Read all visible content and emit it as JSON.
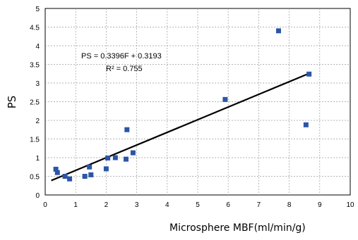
{
  "chart_data": {
    "type": "scatter",
    "xlabel": "Microsphere MBF(ml/min/g)",
    "ylabel": "PS",
    "xlim": [
      0,
      10
    ],
    "ylim": [
      0,
      5
    ],
    "xticks": [
      "0",
      "1",
      "2",
      "3",
      "4",
      "5",
      "6",
      "7",
      "8",
      "9",
      "10"
    ],
    "yticks": [
      "0",
      "0.5",
      "1",
      "1.5",
      "2",
      "2.5",
      "3",
      "3.5",
      "4",
      "4.5",
      "5"
    ],
    "grid": "dashed",
    "legend": "none",
    "series": [
      {
        "marker": "square",
        "color": "#2b55a8",
        "points": [
          [
            0.35,
            0.69
          ],
          [
            0.4,
            0.6
          ],
          [
            0.65,
            0.5
          ],
          [
            0.8,
            0.43
          ],
          [
            1.3,
            0.5
          ],
          [
            1.45,
            0.75
          ],
          [
            1.5,
            0.54
          ],
          [
            2.0,
            0.7
          ],
          [
            2.05,
            0.99
          ],
          [
            2.3,
            1.0
          ],
          [
            2.65,
            0.96
          ],
          [
            2.68,
            1.75
          ],
          [
            2.88,
            1.13
          ],
          [
            5.9,
            2.56
          ],
          [
            7.65,
            4.4
          ],
          [
            8.55,
            1.88
          ],
          [
            8.65,
            3.24
          ]
        ]
      }
    ],
    "trendline": {
      "slope": 0.3396,
      "intercept": 0.3193,
      "x_range": [
        0.2,
        8.65
      ],
      "color": "#000000"
    },
    "annotations": {
      "equation": "PS = 0.3396F + 0.3193",
      "r_squared": "R² = 0.755"
    }
  }
}
